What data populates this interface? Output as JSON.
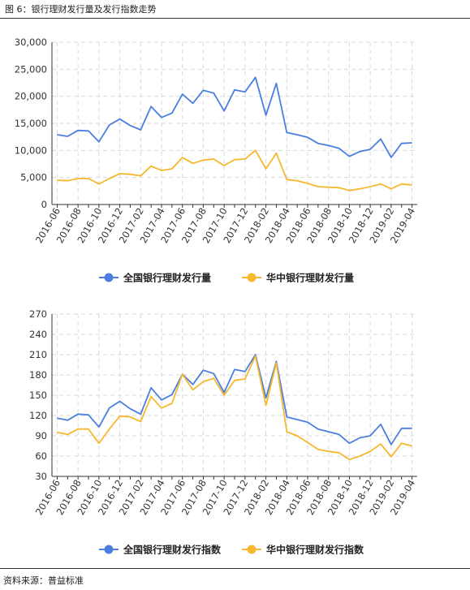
{
  "figure_title": "图 6：银行理财发行量及发行指数走势",
  "source_text": "资料来源：普益标准",
  "colors": {
    "blue": "#4a7fe0",
    "yellow": "#f5b82e",
    "grid": "#d9d9d9"
  },
  "chart_data": [
    {
      "type": "line",
      "title": "",
      "xlabel": "",
      "ylabel": "",
      "ylim": [
        0,
        30000
      ],
      "yticks": [
        "0",
        "5,000",
        "10,000",
        "15,000",
        "20,000",
        "25,000",
        "30,000"
      ],
      "x_tick_labels": [
        "2016-06",
        "2016-08",
        "2016-10",
        "2016-12",
        "2017-02",
        "2017-04",
        "2017-06",
        "2017-08",
        "2017-10",
        "2017-12",
        "2018-02",
        "2018-04",
        "2018-06",
        "2018-08",
        "2018-10",
        "2018-12",
        "2019-02",
        "2019-04"
      ],
      "grid": true,
      "legend_position": "bottom",
      "series": [
        {
          "name": "全国银行理财发行量",
          "color": "#4a7fe0",
          "values": [
            12900,
            12600,
            13700,
            13600,
            11600,
            14700,
            15800,
            14600,
            13800,
            18100,
            16100,
            16900,
            20400,
            18700,
            21100,
            20600,
            17300,
            21200,
            20800,
            23500,
            16500,
            22400,
            13300,
            12900,
            12400,
            11300,
            10900,
            10400,
            8900,
            9800,
            10200,
            12100,
            8700,
            11300,
            11400
          ]
        },
        {
          "name": "华中银行理财发行量",
          "color": "#f5b82e",
          "values": [
            4500,
            4400,
            4800,
            4800,
            3800,
            4800,
            5700,
            5600,
            5300,
            7100,
            6300,
            6600,
            8700,
            7600,
            8200,
            8400,
            7200,
            8300,
            8400,
            10000,
            6600,
            9500,
            4600,
            4400,
            3900,
            3300,
            3200,
            3100,
            2600,
            2900,
            3300,
            3800,
            2900,
            3800,
            3600
          ]
        }
      ]
    },
    {
      "type": "line",
      "title": "",
      "xlabel": "",
      "ylabel": "",
      "ylim": [
        30,
        270
      ],
      "yticks": [
        "30",
        "60",
        "90",
        "120",
        "150",
        "180",
        "210",
        "240",
        "270"
      ],
      "x_tick_labels": [
        "2016-06",
        "2016-08",
        "2016-10",
        "2016-12",
        "2017-02",
        "2017-04",
        "2017-06",
        "2017-08",
        "2017-10",
        "2017-12",
        "2018-02",
        "2018-04",
        "2018-06",
        "2018-08",
        "2018-10",
        "2018-12",
        "2019-02",
        "2019-04"
      ],
      "grid": true,
      "legend_position": "bottom",
      "series": [
        {
          "name": "全国银行理财发行指数",
          "color": "#4a7fe0",
          "values": [
            116,
            113,
            122,
            121,
            103,
            131,
            141,
            130,
            122,
            161,
            143,
            151,
            181,
            166,
            187,
            182,
            154,
            188,
            185,
            210,
            146,
            200,
            118,
            114,
            110,
            100,
            96,
            92,
            79,
            87,
            90,
            107,
            77,
            101,
            101
          ]
        },
        {
          "name": "华中银行理财发行指数",
          "color": "#f5b82e",
          "values": [
            95,
            92,
            100,
            100,
            79,
            100,
            119,
            118,
            111,
            148,
            131,
            138,
            181,
            158,
            170,
            175,
            150,
            172,
            174,
            208,
            135,
            198,
            96,
            90,
            80,
            70,
            67,
            65,
            55,
            60,
            67,
            78,
            59,
            79,
            75
          ]
        }
      ]
    }
  ]
}
